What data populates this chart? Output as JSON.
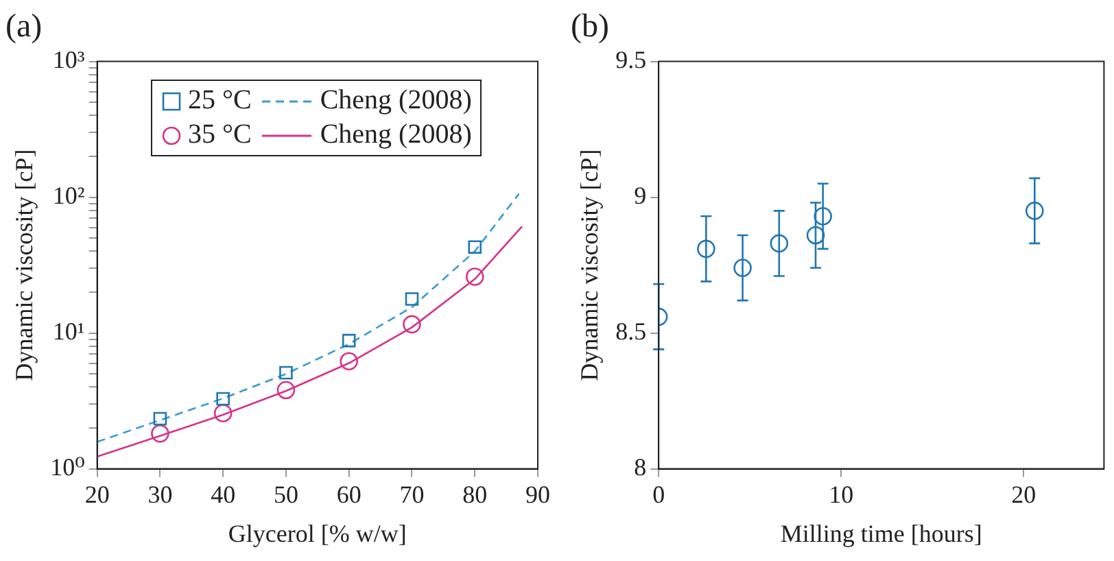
{
  "chart_data": [
    {
      "type": "scatter",
      "title": "(a)",
      "xlabel": "Glycerol [% w/w]",
      "ylabel": "Dynamic viscosity [cP]",
      "log": "y",
      "grid": false,
      "legend": "top left",
      "xlim": [
        20,
        90
      ],
      "xticks": [
        20,
        30,
        40,
        50,
        60,
        70,
        80,
        90
      ],
      "ylim": [
        1,
        1000
      ],
      "yticks": [
        {
          "value": 1,
          "label": "10⁰"
        },
        {
          "value": 2,
          "label": null
        },
        {
          "value": 3,
          "label": null
        },
        {
          "value": 4,
          "label": null
        },
        {
          "value": 5,
          "label": null
        },
        {
          "value": 6,
          "label": null
        },
        {
          "value": 7,
          "label": null
        },
        {
          "value": 8,
          "label": null
        },
        {
          "value": 9,
          "label": null
        },
        {
          "value": 10,
          "label": "10¹"
        },
        {
          "value": 20,
          "label": null
        },
        {
          "value": 30,
          "label": null
        },
        {
          "value": 40,
          "label": null
        },
        {
          "value": 50,
          "label": null
        },
        {
          "value": 60,
          "label": null
        },
        {
          "value": 70,
          "label": null
        },
        {
          "value": 80,
          "label": null
        },
        {
          "value": 90,
          "label": null
        },
        {
          "value": 100,
          "label": "10²"
        },
        {
          "value": 200,
          "label": null
        },
        {
          "value": 300,
          "label": null
        },
        {
          "value": 400,
          "label": null
        },
        {
          "value": 500,
          "label": null
        },
        {
          "value": 600,
          "label": null
        },
        {
          "value": 700,
          "label": null
        },
        {
          "value": 800,
          "label": null
        },
        {
          "value": 900,
          "label": null
        },
        {
          "value": 1000,
          "label": "10³"
        }
      ],
      "series": [
        {
          "name": "25 °C",
          "marker": "square",
          "color": "#1f77b4",
          "x": [
            30,
            40,
            50,
            60,
            70,
            80
          ],
          "values": [
            2.34,
            3.28,
            5.1,
            8.8,
            17.8,
            43
          ]
        },
        {
          "name": "Cheng (2008)",
          "type": "line",
          "line_style": "dashed",
          "color": "#3a9bd0",
          "x": [
            20,
            30,
            40,
            50,
            60,
            70,
            80,
            87
          ],
          "values": [
            1.58,
            2.28,
            3.3,
            5.0,
            8.3,
            15.5,
            40,
            106
          ]
        },
        {
          "name": "35 °C",
          "marker": "circle",
          "color": "#d6338a",
          "x": [
            30,
            40,
            50,
            60,
            70,
            80
          ],
          "values": [
            1.82,
            2.57,
            3.8,
            6.2,
            11.6,
            26
          ]
        },
        {
          "name": "Cheng (2008)",
          "type": "line",
          "line_style": "solid",
          "color": "#d6338a",
          "x": [
            20,
            30,
            40,
            50,
            60,
            70,
            80,
            87.5
          ],
          "values": [
            1.23,
            1.75,
            2.5,
            3.75,
            6.0,
            11,
            25,
            61
          ]
        }
      ]
    },
    {
      "type": "scatter",
      "title": "(b)",
      "xlabel": "Milling time [hours]",
      "ylabel": "Dynamic viscosity [cP]",
      "grid": false,
      "marker": "circle",
      "xlim": [
        0,
        24.4
      ],
      "xticks": [
        0,
        10,
        20
      ],
      "ylim": [
        8,
        9.5
      ],
      "yticks": [
        8,
        8.5,
        9,
        9.5
      ],
      "series": [
        {
          "color": "#1f77b4",
          "x": [
            0,
            2.6,
            4.6,
            6.6,
            8.6,
            9.0,
            20.6
          ],
          "values": [
            8.56,
            8.81,
            8.74,
            8.83,
            8.86,
            8.93,
            8.95
          ],
          "errors": [
            0.12,
            0.12,
            0.12,
            0.12,
            0.12,
            0.12,
            0.12
          ]
        }
      ]
    }
  ]
}
